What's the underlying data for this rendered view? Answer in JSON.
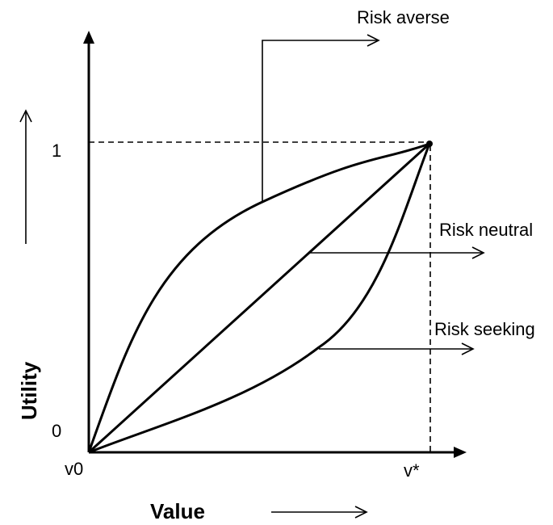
{
  "axes": {
    "x_title": "Value",
    "y_title": "Utility",
    "x_origin_label": "v0",
    "x_max_label": "v*",
    "y_origin_label": "0",
    "y_max_label": "1"
  },
  "curves": [
    {
      "key": "averse",
      "label": "Risk averse"
    },
    {
      "key": "neutral",
      "label": "Risk neutral"
    },
    {
      "key": "seeking",
      "label": "Risk seeking"
    }
  ]
}
